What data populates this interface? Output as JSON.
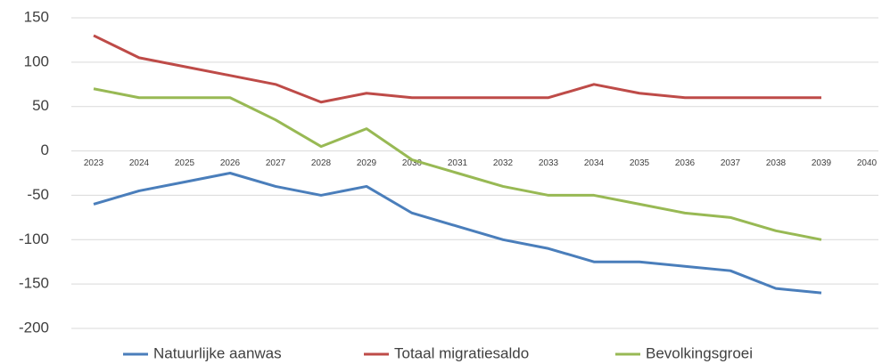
{
  "chart_data": {
    "type": "line",
    "categories": [
      "2023",
      "2024",
      "2025",
      "2026",
      "2027",
      "2028",
      "2029",
      "2030",
      "2031",
      "2032",
      "2033",
      "2034",
      "2035",
      "2036",
      "2037",
      "2038",
      "2039",
      "2040"
    ],
    "series": [
      {
        "name": "Natuurlijke aanwas",
        "color": "#4a7ebb",
        "values": [
          -60,
          -45,
          -35,
          -25,
          -40,
          -50,
          -40,
          -70,
          -85,
          -100,
          -110,
          -125,
          -125,
          -130,
          -135,
          -155,
          -160,
          null
        ]
      },
      {
        "name": "Totaal migratiesaldo",
        "color": "#be4b48",
        "values": [
          130,
          105,
          95,
          85,
          75,
          55,
          65,
          60,
          60,
          60,
          60,
          75,
          65,
          60,
          60,
          60,
          60,
          null
        ]
      },
      {
        "name": "Bevolkingsgroei",
        "color": "#98b954",
        "values": [
          70,
          60,
          60,
          60,
          35,
          5,
          25,
          -10,
          -25,
          -40,
          -50,
          -50,
          -60,
          -70,
          -75,
          -90,
          -100,
          null
        ]
      }
    ],
    "ylim": [
      -200,
      150
    ],
    "yticks": [
      -200,
      -150,
      -100,
      -50,
      0,
      50,
      100,
      150
    ],
    "grid": true
  }
}
